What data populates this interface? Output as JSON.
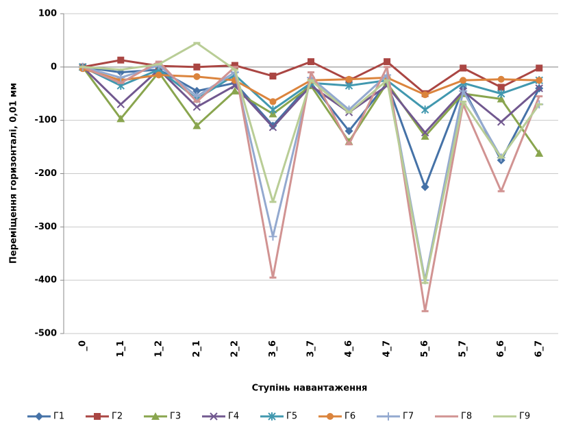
{
  "chart_data": {
    "type": "line",
    "ylabel": "Переміщення горизонталі, 0,01 мм",
    "xlabel": "Ступінь навантаження",
    "categories": [
      "_0",
      "1_1",
      "1_2",
      "2_1",
      "2_2",
      "3_6",
      "3_7",
      "4_6",
      "4_7",
      "5_6",
      "5_7",
      "6_6",
      "6_7"
    ],
    "ylim": [
      -500,
      100
    ],
    "yticks": [
      -500,
      -400,
      -300,
      -200,
      -100,
      0,
      100
    ],
    "grid": true,
    "legend": "bottom",
    "series": [
      {
        "name": "Г1",
        "color": "#4572a7",
        "marker": "diamond",
        "values": [
          0,
          -10,
          -5,
          -45,
          -30,
          -110,
          -30,
          -120,
          -30,
          -225,
          -40,
          -175,
          -40
        ]
      },
      {
        "name": "Г2",
        "color": "#aa4643",
        "marker": "square",
        "values": [
          0,
          13,
          2,
          0,
          3,
          -17,
          10,
          -25,
          10,
          -50,
          -2,
          -38,
          -2
        ]
      },
      {
        "name": "Г3",
        "color": "#89a54e",
        "marker": "triangle",
        "values": [
          0,
          -97,
          -10,
          -110,
          -45,
          -88,
          -35,
          -140,
          -30,
          -130,
          -50,
          -60,
          -162
        ]
      },
      {
        "name": "Г4",
        "color": "#71588f",
        "marker": "x",
        "values": [
          0,
          -70,
          -5,
          -75,
          -35,
          -113,
          -35,
          -85,
          -35,
          -123,
          -45,
          -103,
          -40
        ]
      },
      {
        "name": "Г5",
        "color": "#4198af",
        "marker": "star",
        "values": [
          0,
          -35,
          -5,
          -60,
          -15,
          -80,
          -30,
          -35,
          -25,
          -80,
          -30,
          -50,
          -25
        ]
      },
      {
        "name": "Г6",
        "color": "#db843d",
        "marker": "circle",
        "values": [
          -3,
          -25,
          -15,
          -18,
          -25,
          -65,
          -25,
          -23,
          -20,
          -52,
          -25,
          -23,
          -25
        ]
      },
      {
        "name": "Г7",
        "color": "#93a9cf",
        "marker": "plus",
        "values": [
          0,
          -20,
          3,
          -55,
          -10,
          -318,
          -20,
          -80,
          -15,
          -400,
          -45,
          -170,
          -70
        ]
      },
      {
        "name": "Г8",
        "color": "#d19392",
        "marker": "dash",
        "values": [
          0,
          -30,
          10,
          -65,
          0,
          -395,
          -10,
          -145,
          0,
          -458,
          -70,
          -233,
          -55
        ]
      },
      {
        "name": "Г9",
        "color": "#b9cd96",
        "marker": "dash",
        "values": [
          0,
          -5,
          5,
          45,
          -5,
          -253,
          -25,
          -85,
          -25,
          -405,
          -65,
          -170,
          -70
        ]
      }
    ]
  }
}
